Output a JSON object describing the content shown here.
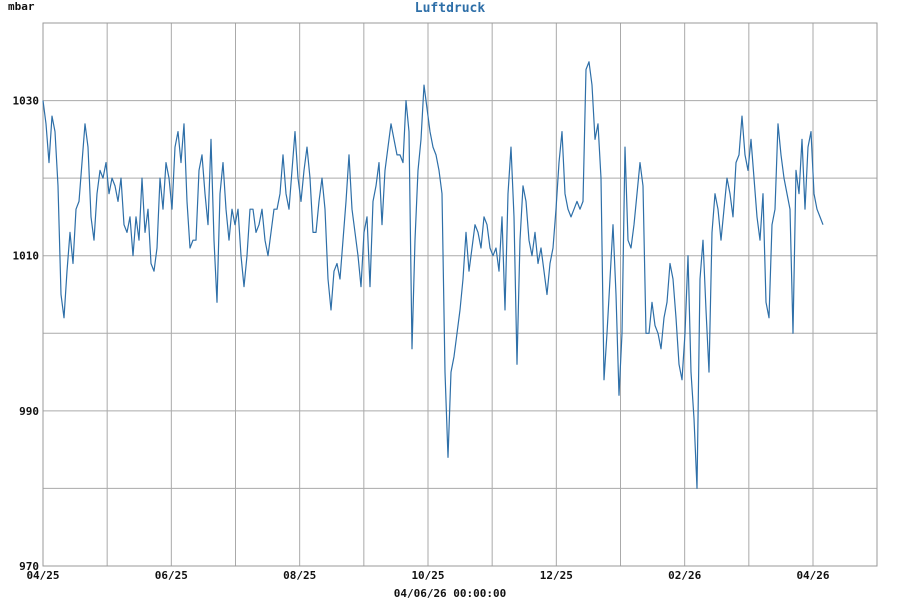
{
  "chart_data": {
    "type": "line",
    "title": "Luftdruck",
    "ylabel": "mbar",
    "xlabel": "",
    "footer": "04/06/26 00:00:00",
    "ylim": [
      970,
      1040
    ],
    "yticks": [
      970,
      990,
      1010,
      1030
    ],
    "xticks": [
      "04/25",
      "06/25",
      "08/25",
      "10/25",
      "12/25",
      "02/26",
      "04/26"
    ],
    "grid": true,
    "legend": "none",
    "colors": {
      "line": "#2e6fa8",
      "grid": "#aaaaaa",
      "title": "#2e6fa8"
    },
    "series": [
      {
        "values": [
          1030,
          1027,
          1022,
          1028,
          1026,
          1019,
          1005,
          1002,
          1008,
          1013,
          1009,
          1016,
          1017,
          1022,
          1027,
          1024,
          1015,
          1012,
          1018,
          1021,
          1020,
          1022,
          1018,
          1020,
          1019,
          1017,
          1020,
          1014,
          1013,
          1015,
          1010,
          1015,
          1012,
          1020,
          1013,
          1016,
          1009,
          1008,
          1011,
          1020,
          1016,
          1022,
          1020,
          1016,
          1024,
          1026,
          1022,
          1027,
          1017,
          1011,
          1012,
          1012,
          1021,
          1023,
          1018,
          1014,
          1025,
          1012,
          1004,
          1018,
          1022,
          1016,
          1012,
          1016,
          1014,
          1016,
          1010,
          1006,
          1010,
          1016,
          1016,
          1013,
          1014,
          1016,
          1012,
          1010,
          1013,
          1016,
          1016,
          1018,
          1023,
          1018,
          1016,
          1021,
          1026,
          1020,
          1017,
          1021,
          1024,
          1020,
          1013,
          1013,
          1017,
          1020,
          1016,
          1007,
          1003,
          1008,
          1009,
          1007,
          1012,
          1017,
          1023,
          1016,
          1013,
          1010,
          1006,
          1013,
          1015,
          1006,
          1017,
          1019,
          1022,
          1014,
          1021,
          1024,
          1027,
          1025,
          1023,
          1023,
          1022,
          1030,
          1026,
          998,
          1012,
          1021,
          1025,
          1032,
          1029,
          1026,
          1024,
          1023,
          1021,
          1018,
          995,
          984,
          995,
          997,
          1000,
          1003,
          1007,
          1013,
          1008,
          1011,
          1014,
          1013,
          1011,
          1015,
          1014,
          1011,
          1010,
          1011,
          1008,
          1015,
          1003,
          1018,
          1024,
          1015,
          996,
          1012,
          1019,
          1017,
          1012,
          1010,
          1013,
          1009,
          1011,
          1008,
          1005,
          1009,
          1011,
          1016,
          1022,
          1026,
          1018,
          1016,
          1015,
          1016,
          1017,
          1016,
          1017,
          1034,
          1035,
          1032,
          1025,
          1027,
          1020,
          994,
          1000,
          1007,
          1014,
          1005,
          992,
          1000,
          1024,
          1012,
          1011,
          1014,
          1018,
          1022,
          1019,
          1000,
          1000,
          1004,
          1001,
          1000,
          998,
          1002,
          1004,
          1009,
          1007,
          1002,
          996,
          994,
          1000,
          1010,
          995,
          989,
          980,
          1007,
          1012,
          1003,
          995,
          1013,
          1018,
          1016,
          1012,
          1016,
          1020,
          1018,
          1015,
          1022,
          1023,
          1028,
          1023,
          1021,
          1025,
          1020,
          1015,
          1012,
          1018,
          1004,
          1002,
          1014,
          1016,
          1027,
          1023,
          1020,
          1018,
          1016,
          1000,
          1021,
          1018,
          1025,
          1016,
          1024,
          1026,
          1018,
          1016,
          1015,
          1014
        ]
      }
    ]
  }
}
